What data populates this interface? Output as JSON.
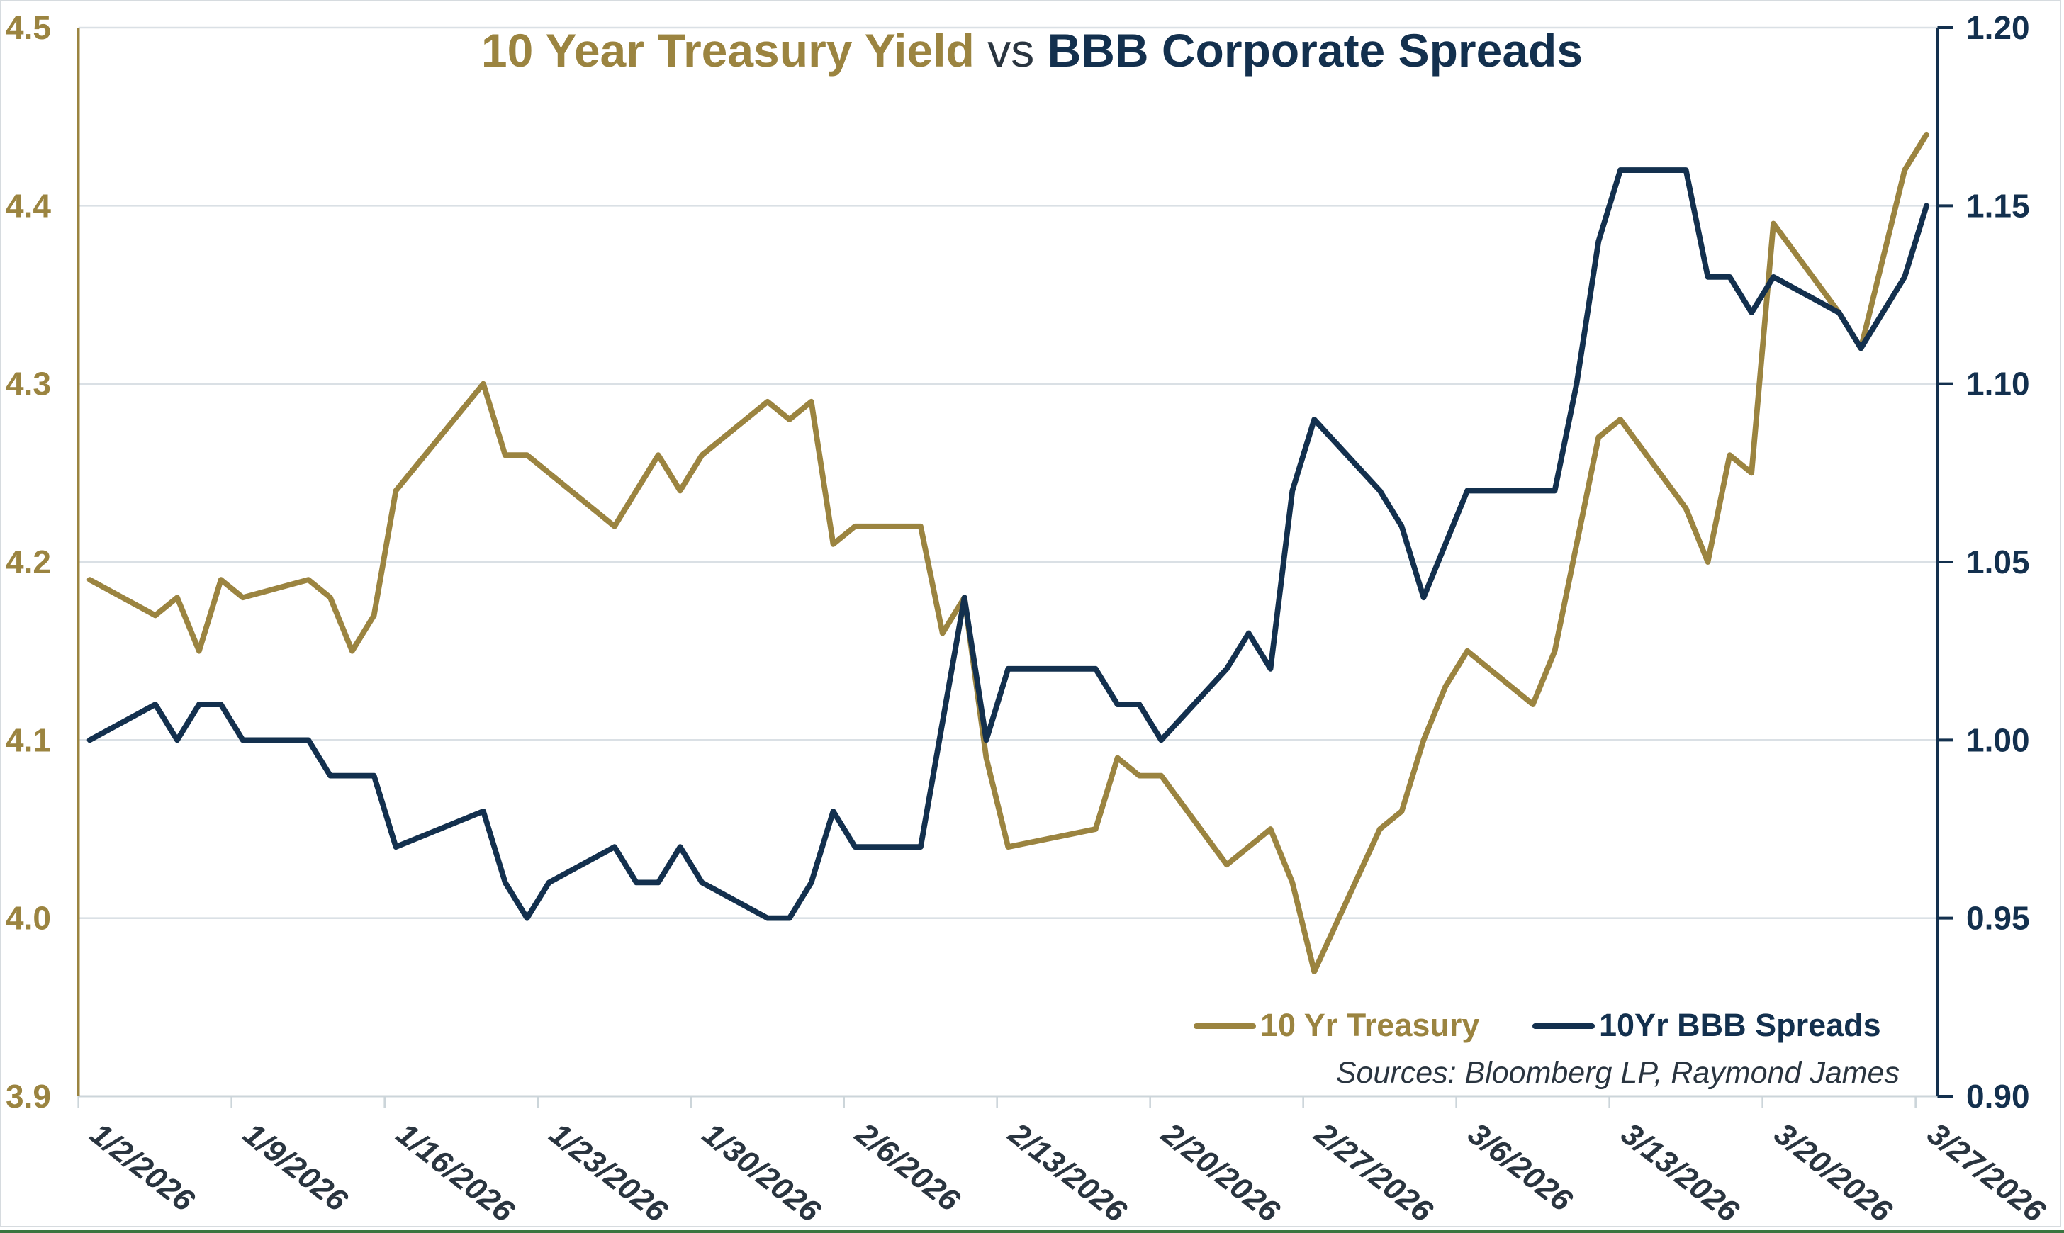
{
  "chart_data": {
    "type": "line",
    "title": {
      "part1": "10 Year Treasury Yield",
      "separator": " vs ",
      "part2": "BBB Corporate Spreads"
    },
    "dates": [
      "1/2/2026",
      "1/5/2026",
      "1/6/2026",
      "1/7/2026",
      "1/8/2026",
      "1/9/2026",
      "1/12/2026",
      "1/13/2026",
      "1/14/2026",
      "1/15/2026",
      "1/16/2026",
      "1/19/2026",
      "1/20/2026",
      "1/21/2026",
      "1/22/2026",
      "1/23/2026",
      "1/26/2026",
      "1/27/2026",
      "1/28/2026",
      "1/29/2026",
      "1/30/2026",
      "2/2/2026",
      "2/3/2026",
      "2/4/2026",
      "2/5/2026",
      "2/6/2026",
      "2/9/2026",
      "2/10/2026",
      "2/11/2026",
      "2/12/2026",
      "2/13/2026",
      "2/16/2026",
      "2/17/2026",
      "2/18/2026",
      "2/19/2026",
      "2/20/2026",
      "2/23/2026",
      "2/24/2026",
      "2/25/2026",
      "2/26/2026",
      "2/27/2026",
      "3/2/2026",
      "3/3/2026",
      "3/4/2026",
      "3/5/2026",
      "3/6/2026",
      "3/9/2026",
      "3/10/2026",
      "3/11/2026",
      "3/12/2026",
      "3/13/2026",
      "3/16/2026",
      "3/17/2026",
      "3/18/2026",
      "3/19/2026",
      "3/20/2026",
      "3/23/2026",
      "3/24/2026",
      "3/25/2026",
      "3/26/2026",
      "3/27/2026"
    ],
    "series": [
      {
        "name": "10 Yr Treasury",
        "axis": "left",
        "color": "#9b8440",
        "values": [
          4.19,
          4.17,
          4.18,
          4.15,
          4.19,
          4.18,
          4.19,
          4.18,
          4.15,
          4.17,
          4.24,
          null,
          4.3,
          4.26,
          4.26,
          4.25,
          4.22,
          4.24,
          4.26,
          4.24,
          4.26,
          4.29,
          4.28,
          4.29,
          4.21,
          4.22,
          4.22,
          4.16,
          4.18,
          4.09,
          4.04,
          null,
          4.05,
          4.09,
          4.08,
          4.08,
          4.03,
          4.04,
          4.05,
          4.02,
          3.97,
          4.05,
          4.06,
          4.1,
          4.13,
          4.15,
          4.12,
          4.15,
          4.21,
          4.27,
          4.28,
          4.23,
          4.2,
          4.26,
          4.25,
          4.39,
          4.34,
          4.32,
          4.37,
          4.42,
          4.44
        ]
      },
      {
        "name": "10Yr BBB Spreads",
        "axis": "right",
        "color": "#13304e",
        "values": [
          1.0,
          1.01,
          1.0,
          1.01,
          1.01,
          1.0,
          1.0,
          0.99,
          0.99,
          0.99,
          0.97,
          null,
          0.98,
          0.96,
          0.95,
          0.96,
          0.97,
          0.96,
          0.96,
          0.97,
          0.96,
          0.95,
          0.95,
          0.96,
          0.98,
          0.97,
          0.97,
          1.005,
          1.04,
          1.0,
          1.02,
          null,
          1.02,
          1.01,
          1.01,
          1.0,
          1.02,
          1.03,
          1.02,
          1.07,
          1.09,
          1.07,
          1.06,
          1.04,
          1.055,
          1.07,
          1.07,
          1.07,
          1.1,
          1.14,
          1.16,
          1.16,
          1.13,
          1.13,
          1.12,
          1.13,
          1.12,
          1.11,
          1.12,
          1.13,
          1.15
        ]
      }
    ],
    "left_axis": {
      "min": 3.9,
      "max": 4.5,
      "tick_labels": [
        "4.5",
        "4.4",
        "4.3",
        "4.2",
        "4.1",
        "4.0",
        "3.9"
      ]
    },
    "right_axis": {
      "min": 0.9,
      "max": 1.2,
      "tick_labels": [
        "1.20",
        "1.15",
        "1.10",
        "1.05",
        "1.00",
        "0.95",
        "0.90"
      ]
    },
    "x_tick_labels": [
      "1/2/2026",
      "1/9/2026",
      "1/16/2026",
      "1/23/2026",
      "1/30/2026",
      "2/6/2026",
      "2/13/2026",
      "2/20/2026",
      "2/27/2026",
      "3/6/2026",
      "3/13/2026",
      "3/20/2026",
      "3/27/2026"
    ],
    "source_note": "Sources: Bloomberg LP, Raymond James",
    "grid": "horizontal-only",
    "legend_position": "inside-bottom-right"
  },
  "colors": {
    "treasury_gold": "#9b8440",
    "spreads_navy": "#13304e",
    "axis_text_dark": "#2a3540",
    "gridline": "#dae0e5",
    "bottom_axis": "#ccd5da",
    "outer_border": "#d6dbdf",
    "bottom_bar_green": "#3a7540",
    "background": "#ffffff"
  }
}
